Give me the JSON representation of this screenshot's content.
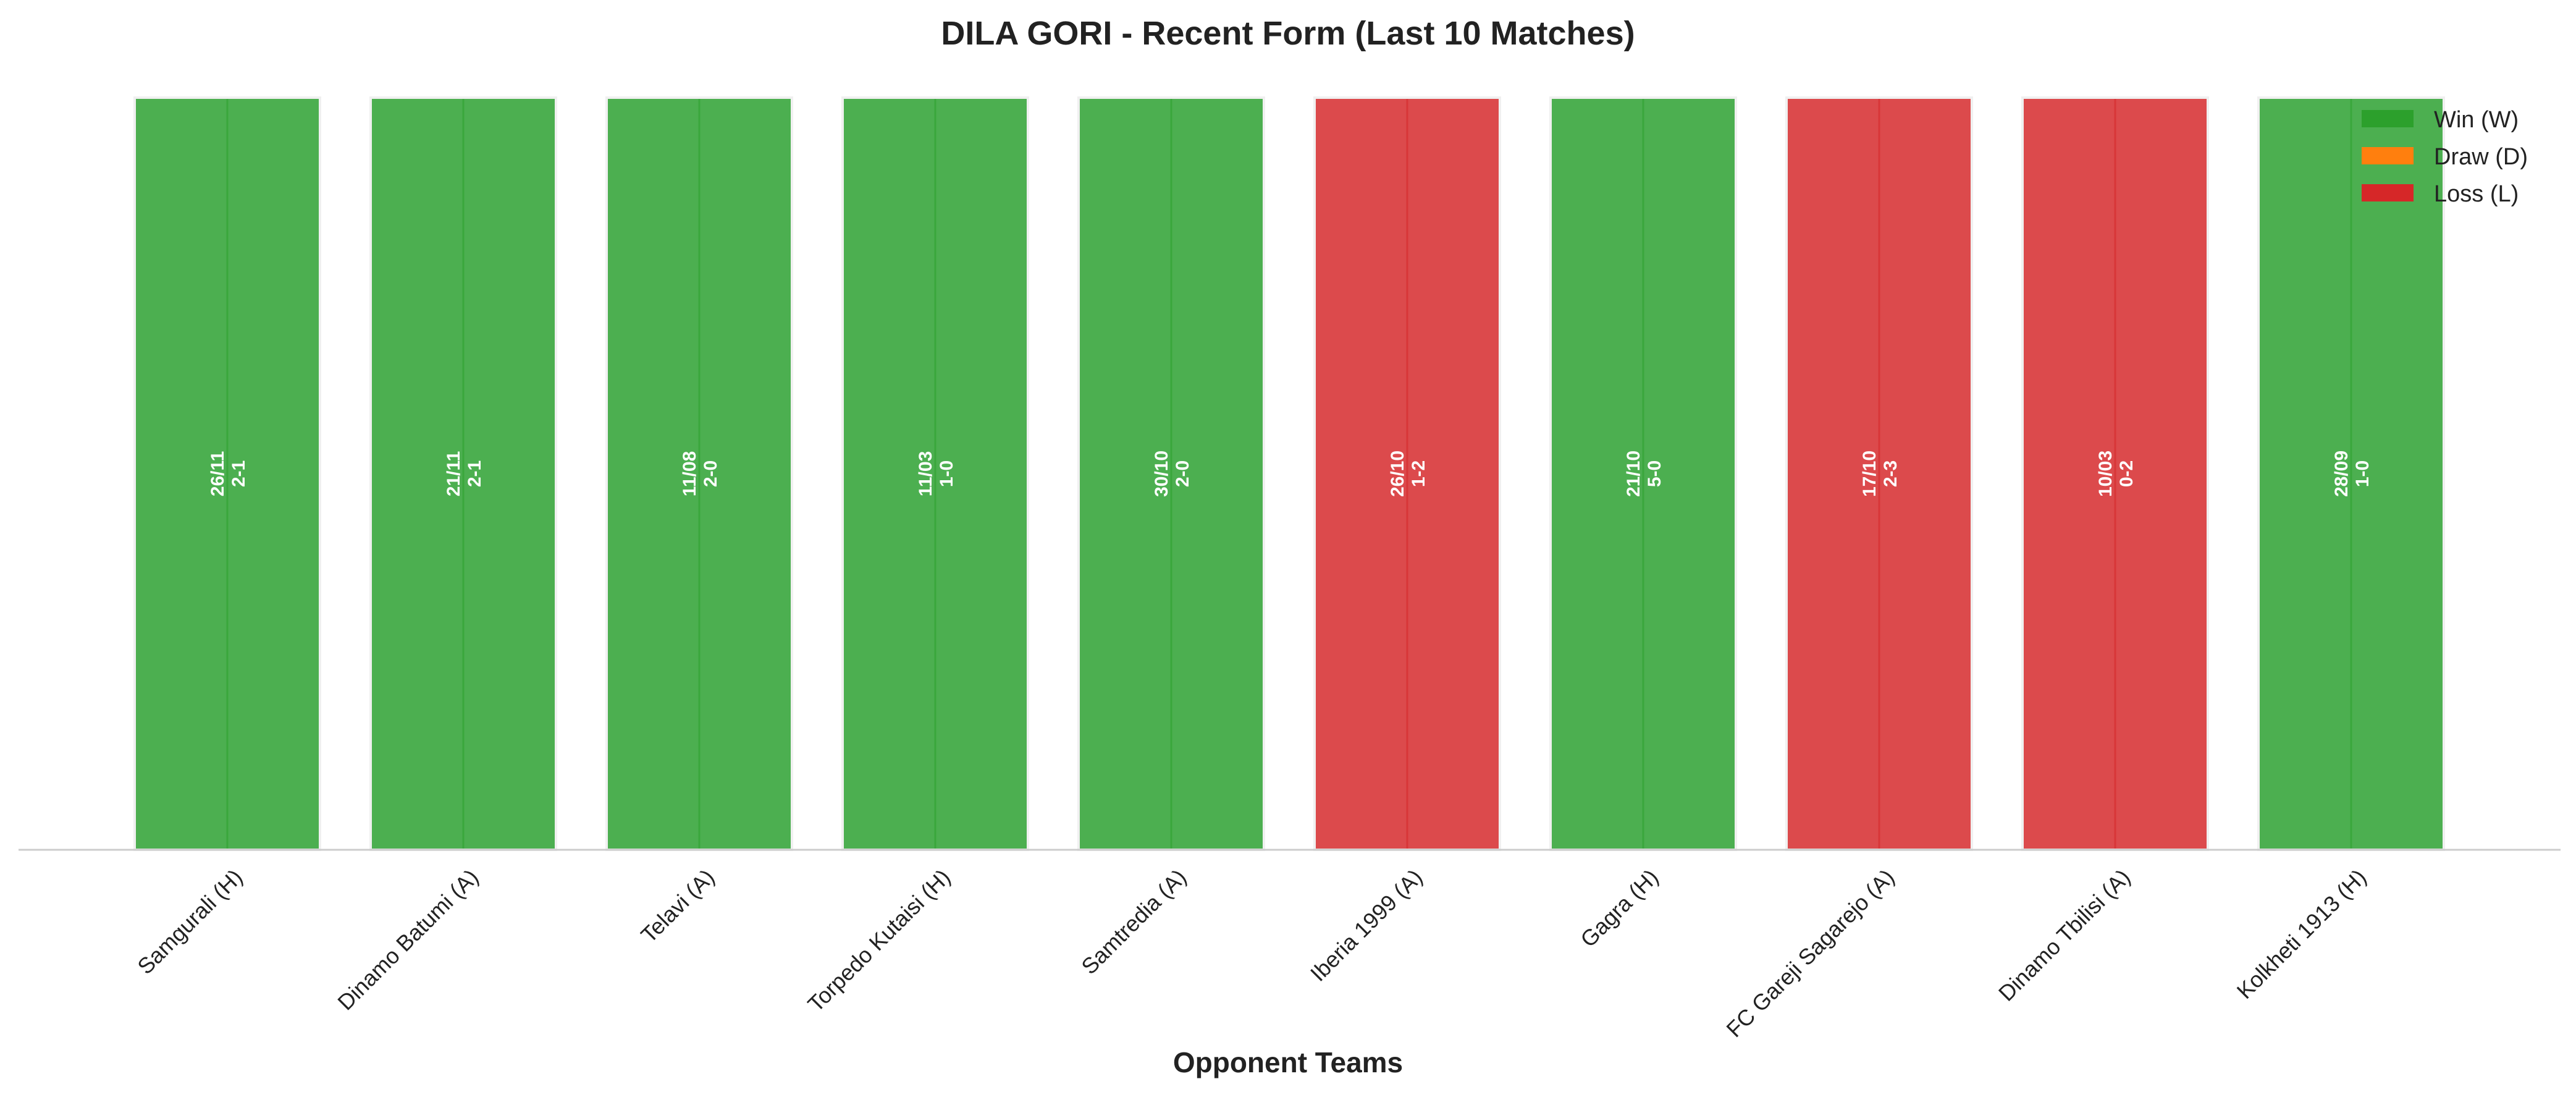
{
  "chart_data": {
    "type": "bar",
    "title": "DILA GORI - Recent Form (Last 10 Matches)",
    "xlabel": "Opponent Teams",
    "ylabel": "",
    "categories": [
      "Samgurali (H)",
      "Dinamo Batumi (A)",
      "Telavi (A)",
      "Torpedo Kutaisi (H)",
      "Samtredia (A)",
      "Iberia 1999 (A)",
      "Gagra (H)",
      "FC Gareji Sagarejo (A)",
      "Dinamo Tbilisi (A)",
      "Kolkheti 1913 (H)"
    ],
    "values": [
      1,
      1,
      1,
      1,
      1,
      1,
      1,
      1,
      1,
      1
    ],
    "results": [
      "W",
      "W",
      "W",
      "W",
      "W",
      "L",
      "W",
      "L",
      "L",
      "W"
    ],
    "bar_labels": [
      {
        "date": "26/11",
        "score": "2-1"
      },
      {
        "date": "21/11",
        "score": "2-1"
      },
      {
        "date": "11/08",
        "score": "2-0"
      },
      {
        "date": "11/03",
        "score": "1-0"
      },
      {
        "date": "30/10",
        "score": "2-0"
      },
      {
        "date": "26/10",
        "score": "1-2"
      },
      {
        "date": "21/10",
        "score": "5-0"
      },
      {
        "date": "17/10",
        "score": "2-3"
      },
      {
        "date": "10/03",
        "score": "0-2"
      },
      {
        "date": "28/09",
        "score": "1-0"
      }
    ],
    "legend": {
      "position": "top-right",
      "entries": [
        {
          "key": "W",
          "label": "Win (W)"
        },
        {
          "key": "D",
          "label": "Draw (D)"
        },
        {
          "key": "L",
          "label": "Loss (L)"
        }
      ]
    },
    "colors": {
      "W": "#2ca02c",
      "D": "#ff7f0e",
      "L": "#d62728",
      "bar_fill_W": "#4caf50",
      "bar_fill_L": "#dc4a4c",
      "axis": "#cccccc",
      "text": "#222222"
    },
    "ylim": [
      0,
      1
    ],
    "grid": false
  }
}
